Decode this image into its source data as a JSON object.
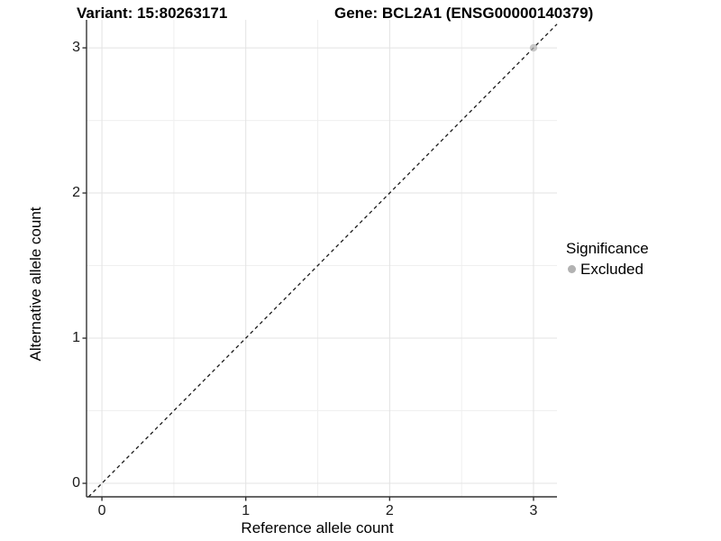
{
  "figure": {
    "background": "#ffffff",
    "titles": {
      "variant": "Variant: 15:80263171",
      "gene": "Gene: BCL2A1 (ENSG00000140379)"
    }
  },
  "axes": {
    "x": {
      "label": "Reference allele count",
      "tick_labels": [
        "0",
        "1",
        "2",
        "3"
      ]
    },
    "y": {
      "label": "Alternative allele count",
      "tick_labels": [
        "0",
        "1",
        "2",
        "3"
      ]
    }
  },
  "legend": {
    "title": "Significance",
    "items": [
      {
        "label": "Excluded",
        "marker": "circle",
        "color": "#b2b2b2"
      }
    ]
  },
  "chart_data": {
    "type": "scatter",
    "title": "Variant: 15:80263171 | Gene: BCL2A1 (ENSG00000140379)",
    "xlabel": "Reference allele count",
    "ylabel": "Alternative allele count",
    "xlim": [
      -0.107,
      3.163
    ],
    "ylim": [
      -0.093,
      3.193
    ],
    "x_ticks": [
      0,
      1,
      2,
      3
    ],
    "y_ticks": [
      0,
      1,
      2,
      3
    ],
    "x_minor_ticks": [
      0.5,
      1.5,
      2.5
    ],
    "y_minor_ticks": [
      0.5,
      1.5,
      2.5
    ],
    "grid": "major+minor",
    "legend_position": "right",
    "series": [
      {
        "name": "Excluded",
        "color": "#b5b5b5",
        "opacity": 0.72,
        "size": 4.2,
        "points": [
          {
            "x": 3,
            "y": 3
          }
        ]
      }
    ],
    "reference_line": {
      "slope": 1,
      "intercept": 0,
      "style": "dashed",
      "color": "#1a1a1a"
    }
  },
  "style": {
    "grid_major_color": "#e3e3e3",
    "grid_minor_color": "#efefef",
    "axis_line_color": "#333333",
    "tick_color": "#333333"
  }
}
